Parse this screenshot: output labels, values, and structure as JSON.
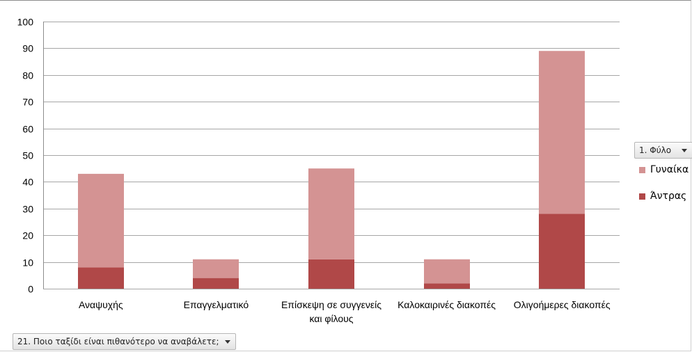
{
  "chart_data": {
    "type": "bar",
    "stacked": true,
    "categories": [
      "Αναψυχής",
      "Επαγγελματικό",
      "Επίσκεψη σε συγγενείς και φίλους",
      "Καλοκαιρινές διακοπές",
      "Ολιγοήμερες διακοπές"
    ],
    "category_lines": [
      [
        "Αναψυχής"
      ],
      [
        "Επαγγελματικό"
      ],
      [
        "Επίσκεψη σε συγγενείς",
        "και φίλους"
      ],
      [
        "Καλοκαιρινές διακοπές"
      ],
      [
        "Ολιγοήμερες διακοπές"
      ]
    ],
    "series": [
      {
        "name": "Άντρας",
        "values": [
          8,
          4,
          11,
          2,
          28
        ],
        "color": "#b04848"
      },
      {
        "name": "Γυναίκα",
        "values": [
          35,
          7,
          34,
          9,
          61
        ],
        "color": "#d49393"
      }
    ],
    "legend_order": [
      "Γυναίκα",
      "Άντρας"
    ],
    "ylim": [
      0,
      100
    ],
    "yticks": [
      0,
      10,
      20,
      30,
      40,
      50,
      60,
      70,
      80,
      90,
      100
    ],
    "grid": true,
    "legend_position": "right"
  },
  "filters": {
    "series_field": "1. Φύλο",
    "category_field": "21. Ποιο ταξίδι είναι πιθανότερο να αναβάλετε;"
  }
}
